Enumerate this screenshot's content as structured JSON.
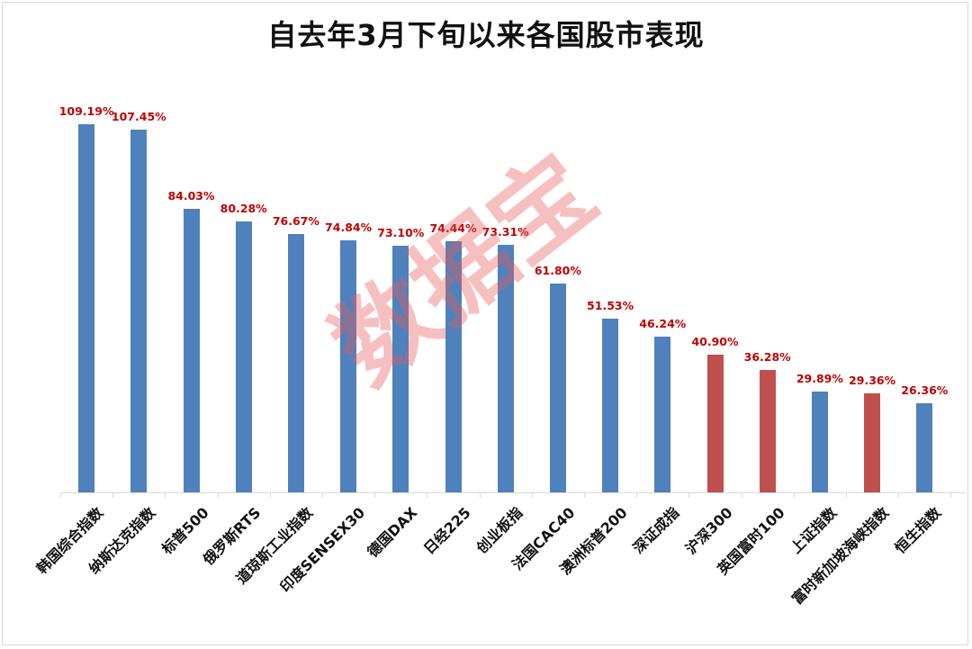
{
  "chart_data": {
    "type": "bar",
    "title": "自去年3月下旬以来各国股市表现",
    "xlabel": "",
    "ylabel": "",
    "ylim": [
      0,
      110
    ],
    "grid": false,
    "legend": null,
    "categories": [
      "韩国综合指数",
      "纳斯达克指数",
      "标普500",
      "俄罗斯RTS",
      "道琼斯工业指数",
      "印度SENSEX30",
      "德国DAX",
      "日经225",
      "创业板指",
      "法国CAC40",
      "澳洲标普200",
      "深证成指",
      "沪深300",
      "英国富时100",
      "上证指数",
      "富时新加坡海峡指数",
      "恒生指数"
    ],
    "values": [
      109.19,
      107.45,
      84.03,
      80.28,
      76.67,
      74.84,
      73.1,
      74.44,
      73.31,
      61.8,
      51.53,
      46.24,
      40.9,
      36.28,
      29.89,
      29.36,
      26.36
    ],
    "labels": [
      "109.19%",
      "107.45%",
      "84.03%",
      "80.28%",
      "76.67%",
      "74.84%",
      "73.10%",
      "74.44%",
      "73.31%",
      "61.80%",
      "51.53%",
      "46.24%",
      "40.90%",
      "36.28%",
      "29.89%",
      "29.36%",
      "26.36%"
    ],
    "bar_colors": [
      "blue",
      "blue",
      "blue",
      "blue",
      "blue",
      "blue",
      "blue",
      "blue",
      "blue",
      "blue",
      "blue",
      "blue",
      "red",
      "red",
      "blue",
      "red",
      "blue"
    ],
    "annotations": [
      "数据宝"
    ]
  },
  "colors": {
    "blue": "#4F81BD",
    "red": "#C0504D",
    "label": "#C00000"
  },
  "watermark": "数据宝"
}
